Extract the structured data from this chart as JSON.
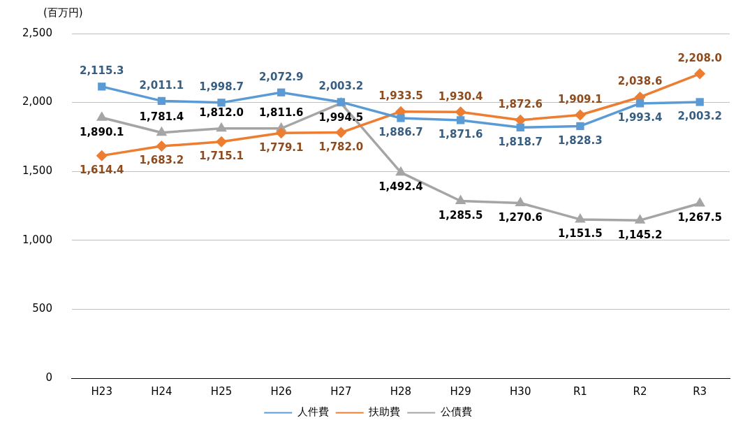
{
  "chart_data": {
    "type": "line",
    "ylabel": "(百万円)",
    "categories": [
      "H23",
      "H24",
      "H25",
      "H26",
      "H27",
      "H28",
      "H29",
      "H30",
      "R1",
      "R2",
      "R3"
    ],
    "series": [
      {
        "name": "人件費",
        "color": "#5b9bd5",
        "marker": "square",
        "values": [
          2115.3,
          2011.1,
          1998.7,
          2072.9,
          2003.2,
          1886.7,
          1871.6,
          1818.7,
          1828.3,
          1993.4,
          2003.2
        ],
        "value_labels": [
          "2,115.3",
          "2,011.1",
          "1,998.7",
          "2,072.9",
          "2,003.2",
          "1,886.7",
          "1,871.6",
          "1,818.7",
          "1,828.3",
          "1,993.4",
          "2,003.2"
        ]
      },
      {
        "name": "扶助費",
        "color": "#ed7d31",
        "marker": "diamond",
        "values": [
          1614.4,
          1683.2,
          1715.1,
          1779.1,
          1782.0,
          1933.5,
          1930.4,
          1872.6,
          1909.1,
          2038.6,
          2208.0
        ],
        "value_labels": [
          "1,614.4",
          "1,683.2",
          "1,715.1",
          "1,779.1",
          "1,782.0",
          "1,933.5",
          "1,930.4",
          "1,872.6",
          "1,909.1",
          "2,038.6",
          "2,208.0"
        ]
      },
      {
        "name": "公債費",
        "color": "#a5a5a5",
        "marker": "triangle",
        "values": [
          1890.1,
          1781.4,
          1812.0,
          1811.6,
          1994.5,
          1492.4,
          1285.5,
          1270.6,
          1151.5,
          1145.2,
          1267.5
        ],
        "value_labels": [
          "1,890.1",
          "1,781.4",
          "1,812.0",
          "1,811.6",
          "1,994.5",
          "1,492.4",
          "1,285.5",
          "1,270.6",
          "1,151.5",
          "1,145.2",
          "1,267.5"
        ]
      }
    ],
    "ylim": [
      0,
      2500
    ],
    "yticks": [
      {
        "value": 0,
        "label": "0"
      },
      {
        "value": 500,
        "label": "500"
      },
      {
        "value": 1000,
        "label": "1,000"
      },
      {
        "value": 1500,
        "label": "1,500"
      },
      {
        "value": 2000,
        "label": "2,000"
      },
      {
        "value": 2500,
        "label": "2,500"
      }
    ],
    "grid": "y",
    "legend": "bottom",
    "line_style": "solid"
  }
}
